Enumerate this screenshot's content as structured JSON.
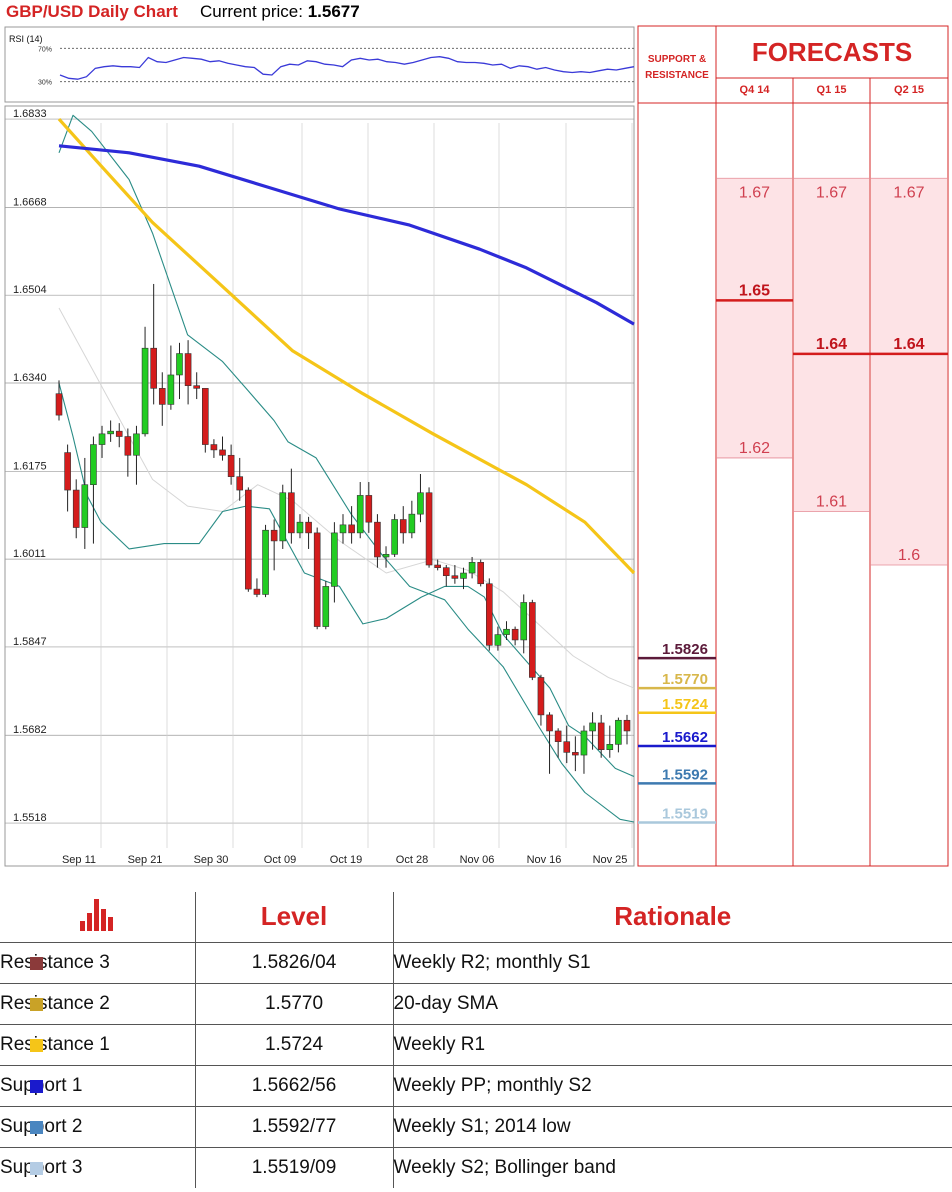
{
  "header": {
    "title": "GBP/USD Daily Chart",
    "price_label": "Current price: ",
    "price_value": "1.5677"
  },
  "rsi": {
    "label": "RSI (14)",
    "upper": "70%",
    "lower": "30%",
    "values": [
      38,
      34,
      33,
      36,
      46,
      48,
      49,
      48,
      48,
      47,
      59,
      54,
      53,
      56,
      59,
      58,
      57,
      54,
      55,
      52,
      50,
      48,
      47,
      39,
      38,
      48,
      51,
      50,
      55,
      54,
      51,
      50,
      48,
      56,
      58,
      56,
      57,
      54,
      53,
      51,
      53,
      56,
      59,
      60,
      58,
      54,
      53,
      53,
      52,
      50,
      51,
      46,
      49,
      48,
      45,
      47,
      44,
      42,
      41,
      42,
      41,
      43,
      45,
      44,
      46,
      48
    ]
  },
  "chart_data": {
    "type": "candlestick",
    "title": "GBP/USD Daily Chart",
    "y_ticks": [
      "1.6833",
      "1.6668",
      "1.6504",
      "1.6340",
      "1.6175",
      "1.6011",
      "1.5847",
      "1.5682",
      "1.5518"
    ],
    "x_ticks": [
      "Sep 11",
      "Sep 21",
      "Sep 30",
      "Oct 09",
      "Oct 19",
      "Oct 28",
      "Nov 06",
      "Nov 16",
      "Nov 25"
    ],
    "ylim": [
      1.5505,
      1.6835
    ],
    "candles": [
      [
        1.632,
        1.628,
        1.6345,
        1.627
      ],
      [
        1.621,
        1.614,
        1.6225,
        1.61
      ],
      [
        1.614,
        1.607,
        1.616,
        1.605
      ],
      [
        1.607,
        1.615,
        1.62,
        1.603
      ],
      [
        1.615,
        1.6225,
        1.624,
        1.604
      ],
      [
        1.6225,
        1.6245,
        1.626,
        1.62
      ],
      [
        1.6245,
        1.625,
        1.627,
        1.623
      ],
      [
        1.625,
        1.624,
        1.6265,
        1.622
      ],
      [
        1.624,
        1.6205,
        1.6255,
        1.6165
      ],
      [
        1.6205,
        1.6245,
        1.626,
        1.615
      ],
      [
        1.6245,
        1.6405,
        1.6445,
        1.624
      ],
      [
        1.6405,
        1.633,
        1.6525,
        1.63
      ],
      [
        1.633,
        1.63,
        1.636,
        1.626
      ],
      [
        1.63,
        1.6355,
        1.641,
        1.629
      ],
      [
        1.6355,
        1.6395,
        1.6415,
        1.631
      ],
      [
        1.6395,
        1.6335,
        1.642,
        1.63
      ],
      [
        1.6335,
        1.633,
        1.636,
        1.631
      ],
      [
        1.633,
        1.6225,
        1.633,
        1.621
      ],
      [
        1.6225,
        1.6215,
        1.6235,
        1.62
      ],
      [
        1.6215,
        1.6205,
        1.624,
        1.6195
      ],
      [
        1.6205,
        1.6165,
        1.6225,
        1.615
      ],
      [
        1.6165,
        1.614,
        1.62,
        1.612
      ],
      [
        1.614,
        1.5955,
        1.6145,
        1.595
      ],
      [
        1.5955,
        1.5945,
        1.5975,
        1.594
      ],
      [
        1.5945,
        1.6065,
        1.6075,
        1.594
      ],
      [
        1.6065,
        1.6045,
        1.6085,
        1.599
      ],
      [
        1.6045,
        1.6135,
        1.615,
        1.603
      ],
      [
        1.6135,
        1.606,
        1.618,
        1.604
      ],
      [
        1.606,
        1.608,
        1.6095,
        1.605
      ],
      [
        1.608,
        1.606,
        1.609,
        1.603
      ],
      [
        1.606,
        1.5885,
        1.607,
        1.588
      ],
      [
        1.5885,
        1.596,
        1.597,
        1.588
      ],
      [
        1.596,
        1.606,
        1.608,
        1.593
      ],
      [
        1.606,
        1.6075,
        1.6095,
        1.604
      ],
      [
        1.6075,
        1.606,
        1.611,
        1.604
      ],
      [
        1.606,
        1.613,
        1.6155,
        1.605
      ],
      [
        1.613,
        1.608,
        1.6155,
        1.606
      ],
      [
        1.608,
        1.6015,
        1.6095,
        1.5995
      ],
      [
        1.6015,
        1.602,
        1.6035,
        1.5995
      ],
      [
        1.602,
        1.6085,
        1.6095,
        1.6015
      ],
      [
        1.6085,
        1.606,
        1.611,
        1.604
      ],
      [
        1.606,
        1.6095,
        1.612,
        1.605
      ],
      [
        1.6095,
        1.6135,
        1.617,
        1.608
      ],
      [
        1.6135,
        1.6,
        1.6145,
        1.5995
      ],
      [
        1.6,
        1.5995,
        1.601,
        1.599
      ],
      [
        1.5995,
        1.598,
        1.6,
        1.596
      ],
      [
        1.598,
        1.5975,
        1.6,
        1.5965
      ],
      [
        1.5975,
        1.5985,
        1.5995,
        1.5955
      ],
      [
        1.5985,
        1.6005,
        1.6015,
        1.5975
      ],
      [
        1.6005,
        1.5965,
        1.601,
        1.596
      ],
      [
        1.5965,
        1.585,
        1.5975,
        1.584
      ],
      [
        1.585,
        1.587,
        1.5885,
        1.584
      ],
      [
        1.587,
        1.588,
        1.5895,
        1.586
      ],
      [
        1.588,
        1.586,
        1.5885,
        1.585
      ],
      [
        1.586,
        1.593,
        1.5945,
        1.5835
      ],
      [
        1.593,
        1.579,
        1.5935,
        1.5785
      ],
      [
        1.579,
        1.572,
        1.5795,
        1.57
      ],
      [
        1.572,
        1.569,
        1.5725,
        1.561
      ],
      [
        1.569,
        1.567,
        1.5695,
        1.564
      ],
      [
        1.567,
        1.565,
        1.57,
        1.563
      ],
      [
        1.565,
        1.5645,
        1.568,
        1.5615
      ],
      [
        1.5645,
        1.569,
        1.57,
        1.561
      ],
      [
        1.569,
        1.5705,
        1.5725,
        1.5655
      ],
      [
        1.5705,
        1.5655,
        1.572,
        1.564
      ],
      [
        1.5655,
        1.5665,
        1.57,
        1.564
      ],
      [
        1.5665,
        1.571,
        1.5715,
        1.565
      ],
      [
        1.571,
        1.569,
        1.572,
        1.5665
      ]
    ],
    "series": [
      {
        "name": "",
        "color": "#2d2bd8",
        "values": [
          [
            0,
            1.6783
          ],
          [
            30,
            1.677
          ],
          [
            60,
            1.6745
          ],
          [
            90,
            1.6705
          ],
          [
            120,
            1.6665
          ],
          [
            150,
            1.6635
          ],
          [
            180,
            1.659
          ],
          [
            200,
            1.6555
          ],
          [
            230,
            1.649
          ],
          [
            246,
            1.645
          ]
        ]
      },
      {
        "name": "",
        "color": "#f5c518",
        "values": [
          [
            0,
            1.6833
          ],
          [
            15,
            1.676
          ],
          [
            40,
            1.664
          ],
          [
            70,
            1.652
          ],
          [
            100,
            1.64
          ],
          [
            130,
            1.632
          ],
          [
            160,
            1.6245
          ],
          [
            200,
            1.615
          ],
          [
            225,
            1.608
          ],
          [
            246,
            1.5985
          ]
        ]
      },
      {
        "name": "",
        "color": "#2a8c86",
        "values": [
          [
            0,
            1.677
          ],
          [
            6,
            1.684
          ],
          [
            14,
            1.681
          ],
          [
            30,
            1.672
          ],
          [
            40,
            1.662
          ],
          [
            55,
            1.643
          ],
          [
            70,
            1.638
          ],
          [
            80,
            1.633
          ],
          [
            92,
            1.627
          ],
          [
            98,
            1.623
          ],
          [
            110,
            1.62
          ],
          [
            125,
            1.6095
          ],
          [
            138,
            1.602
          ],
          [
            150,
            1.596
          ],
          [
            165,
            1.5935
          ],
          [
            175,
            1.588
          ],
          [
            190,
            1.581
          ],
          [
            205,
            1.57
          ],
          [
            215,
            1.563
          ],
          [
            225,
            1.5575
          ],
          [
            240,
            1.5525
          ],
          [
            246,
            1.552
          ]
        ]
      },
      {
        "name": "",
        "color": "#2a8c86",
        "values": [
          [
            0,
            1.634
          ],
          [
            6,
            1.624
          ],
          [
            12,
            1.613
          ],
          [
            18,
            1.608
          ],
          [
            30,
            1.603
          ],
          [
            45,
            1.604
          ],
          [
            60,
            1.604
          ],
          [
            70,
            1.61
          ],
          [
            80,
            1.611
          ],
          [
            90,
            1.6105
          ],
          [
            105,
            1.5985
          ],
          [
            120,
            1.596
          ],
          [
            130,
            1.589
          ],
          [
            140,
            1.59
          ],
          [
            155,
            1.594
          ],
          [
            165,
            1.596
          ],
          [
            175,
            1.596
          ],
          [
            182,
            1.594
          ],
          [
            190,
            1.587
          ],
          [
            200,
            1.582
          ],
          [
            210,
            1.577
          ],
          [
            218,
            1.57
          ],
          [
            225,
            1.568
          ],
          [
            238,
            1.562
          ],
          [
            246,
            1.5605
          ]
        ]
      },
      {
        "name": "",
        "color": "#d6d6d6",
        "values": [
          [
            0,
            1.648
          ],
          [
            20,
            1.632
          ],
          [
            40,
            1.616
          ],
          [
            55,
            1.611
          ],
          [
            70,
            1.61
          ],
          [
            85,
            1.615
          ],
          [
            100,
            1.612
          ],
          [
            120,
            1.6045
          ],
          [
            140,
            1.5985
          ],
          [
            160,
            1.601
          ],
          [
            175,
            1.599
          ],
          [
            190,
            1.595
          ],
          [
            205,
            1.589
          ],
          [
            220,
            1.583
          ],
          [
            235,
            1.579
          ],
          [
            246,
            1.577
          ]
        ]
      }
    ]
  },
  "levels": [
    {
      "value": "1.5826",
      "color": "#5c1a3a",
      "price": 1.5826
    },
    {
      "value": "1.5770",
      "color": "#d8b74a",
      "price": 1.577
    },
    {
      "value": "1.5724",
      "color": "#f5c518",
      "price": 1.5724
    },
    {
      "value": "1.5662",
      "color": "#1a1acc",
      "price": 1.5662
    },
    {
      "value": "1.5592",
      "color": "#3d7ab0",
      "price": 1.5592
    },
    {
      "value": "1.5519",
      "color": "#aac8dc",
      "price": 1.5519
    }
  ],
  "forecasts": {
    "title": "FORECASTS",
    "sr_label": [
      "SUPPORT &",
      "RESISTANCE"
    ],
    "columns": [
      {
        "label": "Q4 14",
        "high": "1.67",
        "median": "1.65",
        "low": "1.62",
        "high_p": 1.67,
        "median_p": 1.65,
        "low_p": 1.62
      },
      {
        "label": "Q1 15",
        "high": "1.67",
        "median": "1.64",
        "low": "1.61",
        "high_p": 1.67,
        "median_p": 1.64,
        "low_p": 1.61
      },
      {
        "label": "Q2 15",
        "high": "1.67",
        "median": "1.64",
        "low": "1.6",
        "high_p": 1.67,
        "median_p": 1.64,
        "low_p": 1.6
      }
    ]
  },
  "table": {
    "headers": [
      "Level",
      "Rationale"
    ],
    "icon": "bar-chart-icon",
    "rows": [
      {
        "name": "Resistance 3",
        "level": "1.5826/04",
        "rationale": "Weekly R2; monthly S1",
        "color": "#8b3a3a"
      },
      {
        "name": "Resistance 2",
        "level": "1.5770",
        "rationale": "20-day SMA",
        "color": "#c9a227"
      },
      {
        "name": "Resistance 1",
        "level": "1.5724",
        "rationale": "Weekly R1",
        "color": "#f5c518"
      },
      {
        "name": "Support 1",
        "level": "1.5662/56",
        "rationale": "Weekly PP; monthly S2",
        "color": "#1a1acc"
      },
      {
        "name": "Support 2",
        "level": "1.5592/77",
        "rationale": "Weekly S1; 2014 low",
        "color": "#4a86c0"
      },
      {
        "name": "Support 3",
        "level": "1.5519/09",
        "rationale": "Weekly S2; Bollinger band",
        "color": "#b4cce4"
      }
    ]
  }
}
